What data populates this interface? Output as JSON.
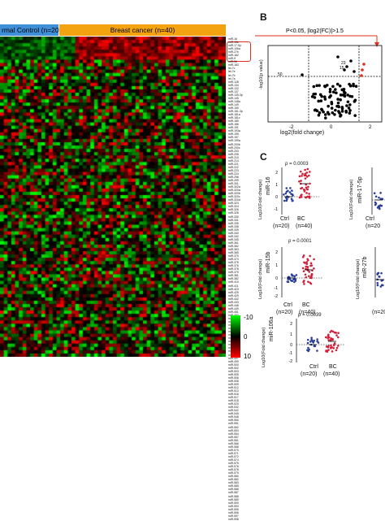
{
  "panels": {
    "a": {
      "group_ctrl": "rmal Control (n=20)",
      "group_bc": "Breast cancer (n=40)",
      "row_labels": [
        "miR-16",
        "miR-15b",
        "miR-17-5p",
        "miR-106a",
        "miR-27b",
        "miR-182",
        "miR-9",
        "miR-96",
        "miR-183",
        "let-7c",
        "let-7e",
        "let-7b",
        "let-7a",
        "miR-128",
        "miR-134",
        "miR-132",
        "miR-137",
        "miR-139-3p",
        "miR-145",
        "miR-148a",
        "miR-149",
        "miR-150",
        "miR-151-3p",
        "miR-181a",
        "miR-181c",
        "miR-185",
        "miR-186",
        "miR-191",
        "miR-193a",
        "miR-195",
        "miR-197",
        "miR-199a",
        "miR-200b",
        "miR-200c",
        "miR-203",
        "miR-205",
        "miR-210",
        "miR-214",
        "miR-221",
        "miR-222",
        "miR-223",
        "miR-224",
        "miR-296",
        "miR-299",
        "miR-301",
        "miR-302a",
        "miR-320a",
        "miR-320b",
        "miR-320c",
        "miR-320d",
        "miR-323",
        "miR-324",
        "miR-326",
        "miR-328",
        "miR-330",
        "miR-331",
        "miR-335",
        "miR-338",
        "miR-339",
        "miR-340",
        "miR-342",
        "miR-345",
        "miR-361",
        "miR-362",
        "miR-363",
        "miR-365",
        "miR-370",
        "miR-374",
        "miR-375",
        "miR-376",
        "miR-378",
        "miR-379",
        "miR-381",
        "miR-382",
        "miR-410",
        "miR-411",
        "miR-423",
        "miR-425",
        "miR-429",
        "miR-432",
        "miR-433",
        "miR-448",
        "miR-449",
        "miR-451",
        "miR-452",
        "miR-483",
        "miR-484",
        "miR-485",
        "miR-486",
        "miR-487",
        "miR-489",
        "miR-490",
        "miR-491",
        "miR-492",
        "miR-493",
        "miR-494",
        "miR-495",
        "miR-497",
        "miR-499",
        "miR-500",
        "miR-502",
        "miR-503",
        "miR-505",
        "miR-506",
        "miR-508",
        "miR-509",
        "miR-512",
        "miR-513",
        "miR-516",
        "miR-517",
        "miR-518",
        "miR-520",
        "miR-532",
        "miR-542",
        "miR-545",
        "miR-548",
        "miR-550",
        "miR-551",
        "miR-552",
        "miR-553",
        "miR-554",
        "miR-557",
        "miR-561",
        "miR-566",
        "miR-568",
        "miR-570",
        "miR-571",
        "miR-572",
        "miR-574",
        "miR-575",
        "miR-576",
        "miR-578",
        "miR-579",
        "miR-580",
        "miR-582",
        "miR-583",
        "miR-585",
        "miR-586",
        "miR-587",
        "miR-588",
        "miR-589",
        "miR-590",
        "miR-593",
        "miR-595",
        "miR-596",
        "miR-597",
        "miR-598"
      ],
      "colorbar_top": "-10",
      "colorbar_mid": "0",
      "colorbar_bottom": "10"
    },
    "b": {
      "letter": "B",
      "title": "P<0.05, |log2(FC)|>1.5",
      "xlabel": "log2(fold change)",
      "ylabel": "-log10(p value)",
      "xticks": [
        "-2",
        "0",
        "2"
      ],
      "point_labels": [
        "23",
        "15",
        "50"
      ]
    },
    "c": {
      "letter": "C",
      "pvalue_label": "p = ",
      "plots": [
        {
          "mir": "miR-16",
          "p": "0.0003"
        },
        {
          "mir": "miR-15b",
          "p": "0.0001"
        },
        {
          "mir": "miR-106a",
          "p": "0.0039"
        },
        {
          "mir": "miR-17-5p",
          "p": ""
        },
        {
          "mir": "miR-27b",
          "p": ""
        }
      ],
      "ylabel": "Log10(Fold change)",
      "ctrl": "Ctrl",
      "bc": "BC",
      "n_ctrl": "(n=20)",
      "n_bc": "(n=40)",
      "n_partial": "(n=20",
      "yticks_a": [
        "2",
        "1",
        "0",
        "-1"
      ],
      "yticks_b": [
        "2",
        "1",
        "0",
        "-1",
        "-2"
      ],
      "yticks_c": [
        "2",
        "1",
        "0",
        "-1",
        "-2"
      ],
      "colors": {
        "ctrl": "#2a3f9c",
        "bc": "#d0213a"
      }
    }
  }
}
